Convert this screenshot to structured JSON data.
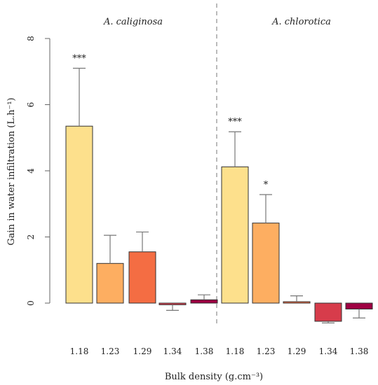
{
  "chart_data": {
    "type": "bar",
    "ylabel": "Gain in water infiltration (L.h⁻¹)",
    "xlabel": "Bulk density (g.cm⁻³)",
    "ylim": [
      -0.8,
      8
    ],
    "yticks": [
      "0",
      "2",
      "4",
      "6",
      "8"
    ],
    "grid": false,
    "panels": [
      {
        "title": "A. caliginosa",
        "categories": [
          "1.18",
          "1.23",
          "1.29",
          "1.34",
          "1.38"
        ],
        "values": [
          5.35,
          1.2,
          1.55,
          -0.05,
          0.1
        ],
        "error_upper": [
          7.1,
          2.05,
          2.15,
          -0.05,
          0.25
        ],
        "error_lower": [
          5.35,
          1.2,
          1.55,
          -0.22,
          0.1
        ],
        "significance": [
          "***",
          "",
          "",
          "",
          ""
        ]
      },
      {
        "title": "A. chlorotica",
        "categories": [
          "1.18",
          "1.23",
          "1.29",
          "1.34",
          "1.38"
        ],
        "values": [
          4.12,
          2.42,
          0.03,
          -0.55,
          -0.18
        ],
        "error_upper": [
          5.18,
          3.28,
          0.22,
          -0.55,
          -0.18
        ],
        "error_lower": [
          4.12,
          2.42,
          0.03,
          -0.6,
          -0.45
        ],
        "significance": [
          "***",
          "*",
          "",
          "",
          ""
        ]
      }
    ],
    "colors": [
      "#fde08c",
      "#fdae61",
      "#f46d43",
      "#d73c4b",
      "#9e0142"
    ]
  }
}
